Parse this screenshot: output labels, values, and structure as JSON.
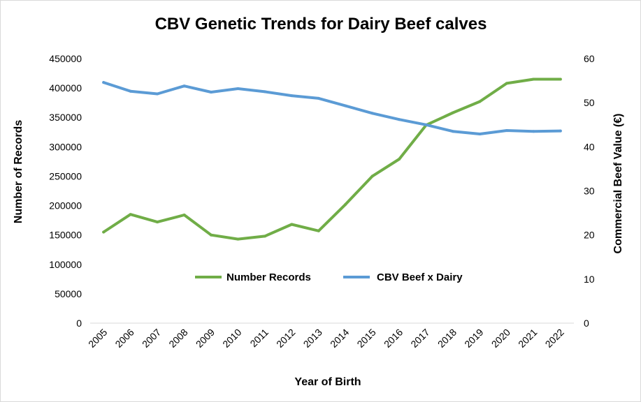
{
  "chart_data": {
    "type": "line",
    "title": "CBV Genetic Trends for Dairy Beef calves",
    "xlabel": "Year of Birth",
    "ylabel": "Number of Records",
    "y2label": "Commercial Beef  Value (€)",
    "categories": [
      "2005",
      "2006",
      "2007",
      "2008",
      "2009",
      "2010",
      "2011",
      "2012",
      "2013",
      "2014",
      "2015",
      "2016",
      "2017",
      "2018",
      "2019",
      "2020",
      "2021",
      "2022"
    ],
    "ylim": [
      0,
      450000
    ],
    "yticks": [
      "0",
      "50000",
      "100000",
      "150000",
      "200000",
      "250000",
      "300000",
      "350000",
      "400000",
      "450000"
    ],
    "y2lim": [
      0,
      60
    ],
    "y2ticks": [
      "0",
      "10",
      "20",
      "30",
      "40",
      "50",
      "60"
    ],
    "grid": false,
    "legend_position": "inside-center",
    "series": [
      {
        "name": "Number Records",
        "axis": "left",
        "color": "#70ad47",
        "values": [
          155000,
          185000,
          172000,
          184000,
          150000,
          143000,
          148000,
          168000,
          157000,
          202000,
          250000,
          279000,
          337000,
          358000,
          377000,
          408000,
          415000,
          415000
        ]
      },
      {
        "name": "CBV Beef x Dairy",
        "axis": "right",
        "color": "#5b9bd5",
        "values": [
          54.6,
          52.6,
          52.0,
          53.8,
          52.4,
          53.2,
          52.5,
          51.6,
          51.0,
          49.3,
          47.6,
          46.2,
          45.0,
          43.5,
          42.9,
          43.7,
          43.5,
          43.6
        ]
      }
    ]
  }
}
